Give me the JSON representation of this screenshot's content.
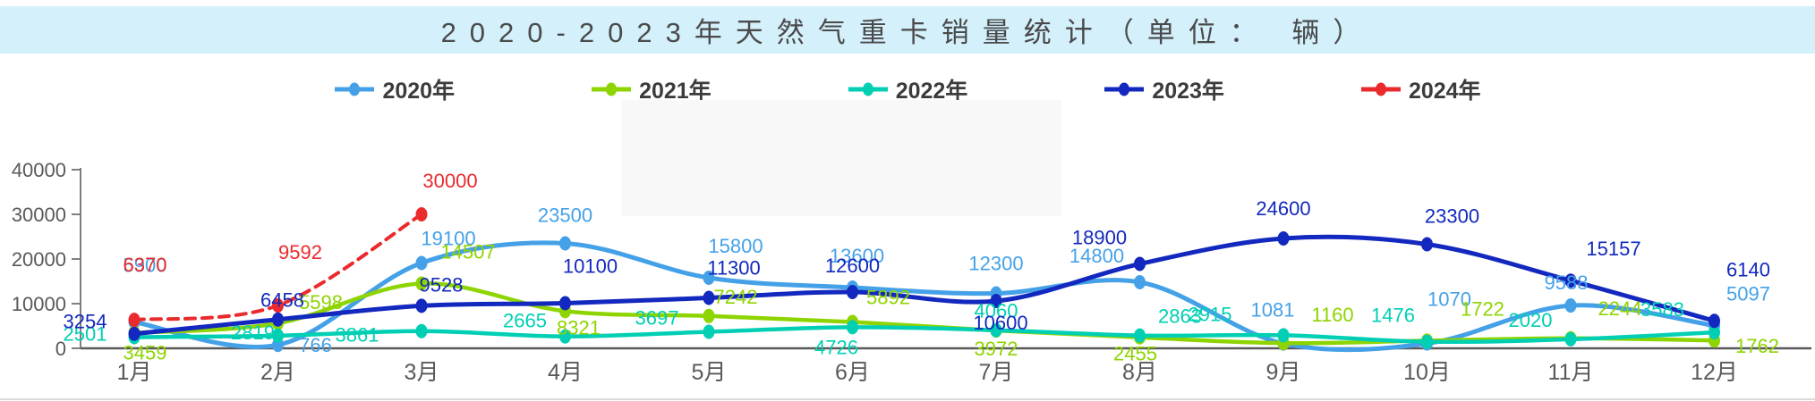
{
  "page": {
    "title": "2020-2023年天然气重卡销量统计（单位： 辆）"
  },
  "chart_data": {
    "type": "line",
    "title": "2020-2023年天然气重卡销量统计（单位： 辆）",
    "categories": [
      "1月",
      "2月",
      "3月",
      "4月",
      "5月",
      "6月",
      "7月",
      "8月",
      "9月",
      "10月",
      "11月",
      "12月"
    ],
    "y_ticks": [
      0,
      10000,
      20000,
      30000,
      40000
    ],
    "ylim": [
      0,
      40000
    ],
    "grid": false,
    "legend_position": "top",
    "series": [
      {
        "name": "2020年",
        "color": "#44a1e8",
        "dashed": false,
        "values": [
          5900,
          766,
          19100,
          23500,
          15800,
          13600,
          12300,
          14800,
          1081,
          1070,
          9588,
          5097
        ]
      },
      {
        "name": "2021年",
        "color": "#8ed400",
        "dashed": false,
        "values": [
          3459,
          5598,
          14507,
          8321,
          7242,
          5892,
          3972,
          2455,
          1160,
          1722,
          2244,
          1762
        ]
      },
      {
        "name": "2022年",
        "color": "#00cfb4",
        "dashed": false,
        "values": [
          2501,
          2819,
          3861,
          2665,
          3697,
          4726,
          4060,
          2863,
          2915,
          1476,
          2020,
          3583
        ]
      },
      {
        "name": "2023年",
        "color": "#1228be",
        "dashed": false,
        "values": [
          3254,
          6458,
          9528,
          10100,
          11300,
          12600,
          10600,
          18900,
          24600,
          23300,
          15157,
          6140
        ]
      },
      {
        "name": "2024年",
        "color": "#ea2a2c",
        "dashed": true,
        "values": [
          6370,
          9592,
          30000,
          null,
          null,
          null,
          null,
          null,
          null,
          null,
          null,
          null
        ]
      }
    ]
  },
  "colors": {
    "title_bar_bg": "#d3f0fb",
    "axis_text": "#595959",
    "axis_line": "#7f7f7f"
  }
}
